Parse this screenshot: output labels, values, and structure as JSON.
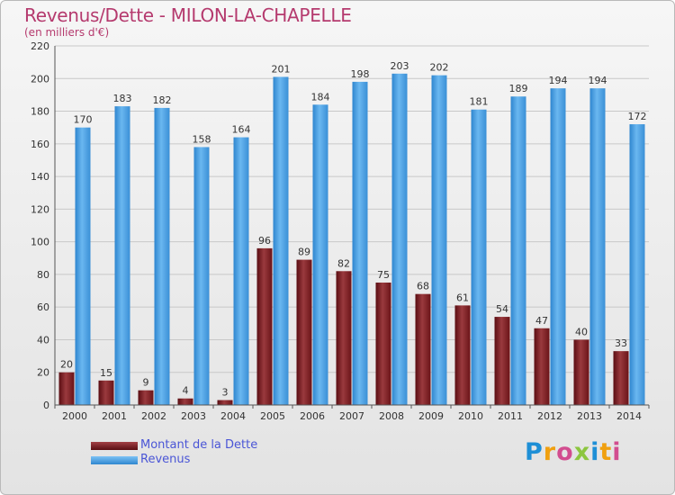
{
  "header": {
    "title": "Revenus/Dette - MILON-LA-CHAPELLE",
    "subtitle": "(en milliers d'€)"
  },
  "colors": {
    "title": "#b53a6e",
    "debt": "#7a1a1e",
    "revenue": "#4aa0e6",
    "legend_text": "#4a55d6"
  },
  "legend": {
    "items": [
      {
        "label": "Montant de la Dette",
        "color": "#7a1a1e"
      },
      {
        "label": "Revenus",
        "color": "#4aa0e6"
      }
    ]
  },
  "brand": {
    "letters": [
      "P",
      "r",
      "o",
      "x",
      "i",
      "t",
      "i"
    ],
    "colors": [
      "#1e8fd6",
      "#f0a010",
      "#d24d8f",
      "#8cc63f",
      "#1e8fd6",
      "#f0a010",
      "#d24d8f"
    ]
  },
  "chart_data": {
    "type": "bar",
    "categories": [
      "2000",
      "2001",
      "2002",
      "2003",
      "2004",
      "2005",
      "2006",
      "2007",
      "2008",
      "2009",
      "2010",
      "2011",
      "2012",
      "2013",
      "2014"
    ],
    "series": [
      {
        "name": "Montant de la Dette",
        "values": [
          20,
          15,
          9,
          4,
          3,
          96,
          89,
          82,
          75,
          68,
          61,
          54,
          47,
          40,
          33
        ]
      },
      {
        "name": "Revenus",
        "values": [
          170,
          183,
          182,
          158,
          164,
          201,
          184,
          198,
          203,
          202,
          181,
          189,
          194,
          194,
          172
        ]
      }
    ],
    "yticks": [
      0,
      20,
      40,
      60,
      80,
      100,
      120,
      140,
      160,
      180,
      200,
      220
    ],
    "ylim": [
      0,
      220
    ],
    "grid": true,
    "legend_position": "bottom-left"
  }
}
